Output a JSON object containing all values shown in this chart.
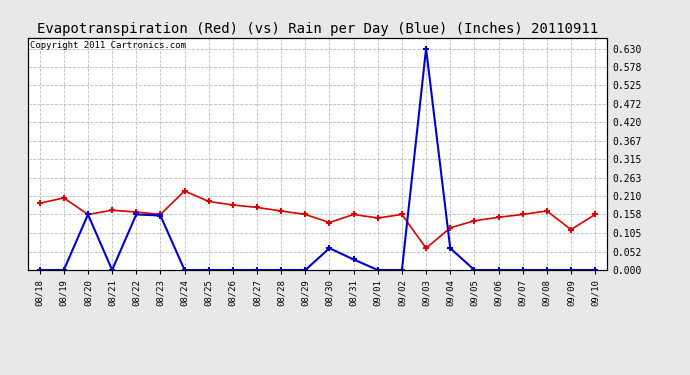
{
  "title": "Evapotranspiration (Red) (vs) Rain per Day (Blue) (Inches) 20110911",
  "copyright": "Copyright 2011 Cartronics.com",
  "labels": [
    "08/18",
    "08/19",
    "08/20",
    "08/21",
    "08/22",
    "08/23",
    "08/24",
    "08/25",
    "08/26",
    "08/27",
    "08/28",
    "08/29",
    "08/30",
    "08/31",
    "09/01",
    "09/02",
    "09/03",
    "09/04",
    "09/05",
    "09/06",
    "09/07",
    "09/08",
    "09/09",
    "09/10"
  ],
  "red_values": [
    0.19,
    0.205,
    0.158,
    0.17,
    0.165,
    0.158,
    0.225,
    0.195,
    0.185,
    0.178,
    0.168,
    0.158,
    0.135,
    0.158,
    0.148,
    0.158,
    0.062,
    0.12,
    0.14,
    0.15,
    0.158,
    0.168,
    0.115,
    0.158
  ],
  "blue_values": [
    0.0,
    0.0,
    0.158,
    0.0,
    0.158,
    0.155,
    0.0,
    0.0,
    0.0,
    0.0,
    0.0,
    0.0,
    0.062,
    0.03,
    0.0,
    0.0,
    0.63,
    0.062,
    0.0,
    0.0,
    0.0,
    0.0,
    0.0,
    0.0
  ],
  "yticks": [
    0.0,
    0.052,
    0.105,
    0.158,
    0.21,
    0.263,
    0.315,
    0.367,
    0.42,
    0.472,
    0.525,
    0.578,
    0.63
  ],
  "ylim": [
    0.0,
    0.6615
  ],
  "bg_color": "#e8e8e8",
  "plot_bg_color": "#ffffff",
  "grid_color": "#bbbbbb",
  "red_color": "#dd0000",
  "blue_color": "#0000cc",
  "title_fontsize": 10,
  "copyright_fontsize": 6.5
}
